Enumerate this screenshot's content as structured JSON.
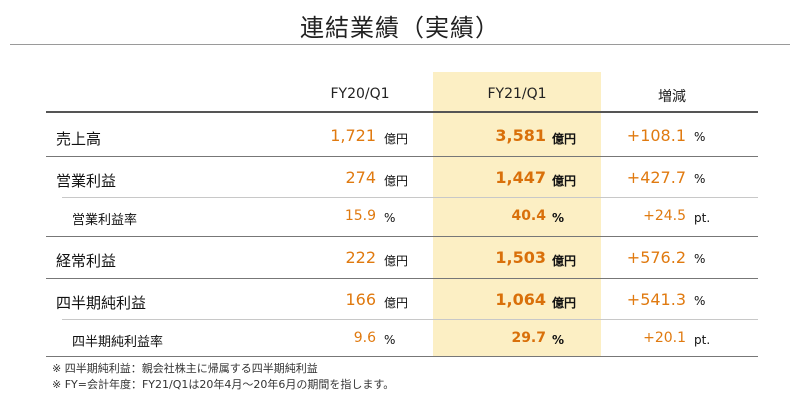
{
  "title": "連結業績（実績）",
  "headers": {
    "prev": "FY20/Q1",
    "curr": "FY21/Q1",
    "change": "増減"
  },
  "rows": [
    {
      "label": "売上高",
      "prev": "1,721",
      "prev_unit": "億円",
      "curr": "3,581",
      "curr_unit": "億円",
      "change": "+108.1",
      "change_unit": "%"
    },
    {
      "label": "営業利益",
      "prev": "274",
      "prev_unit": "億円",
      "curr": "1,447",
      "curr_unit": "億円",
      "change": "+427.7",
      "change_unit": "%"
    },
    {
      "label": "営業利益率",
      "prev": "15.9",
      "prev_unit": "%",
      "curr": "40.4",
      "curr_unit": "%",
      "change": "+24.5",
      "change_unit": "pt."
    },
    {
      "label": "経常利益",
      "prev": "222",
      "prev_unit": "億円",
      "curr": "1,503",
      "curr_unit": "億円",
      "change": "+576.2",
      "change_unit": "%"
    },
    {
      "label": "四半期純利益",
      "prev": "166",
      "prev_unit": "億円",
      "curr": "1,064",
      "curr_unit": "億円",
      "change": "+541.3",
      "change_unit": "%"
    },
    {
      "label": "四半期純利益率",
      "prev": "9.6",
      "prev_unit": "%",
      "curr": "29.7",
      "curr_unit": "%",
      "change": "+20.1",
      "change_unit": "pt."
    }
  ],
  "notes": [
    "※ 四半期純利益：親会社株主に帰属する四半期純利益",
    "※ FY=会計年度：FY21/Q1は20年4月～20年6月の期間を指します。"
  ],
  "colors": {
    "highlight": "#fcefc4",
    "value": "#e07a10",
    "value_bold": "#d9700a"
  }
}
